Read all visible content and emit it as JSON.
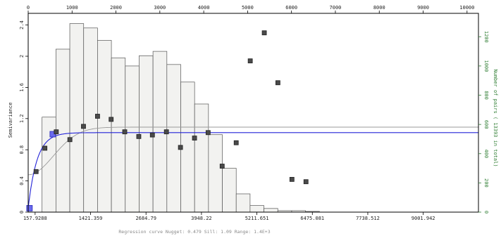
{
  "chart_data": {
    "type": "bar",
    "combo": [
      "histogram-bar",
      "scatter",
      "line"
    ],
    "xlim": [
      0,
      10260
    ],
    "x_top_ticks": [
      0,
      1000,
      2000,
      3000,
      4000,
      5000,
      6000,
      7000,
      8000,
      9000,
      10000
    ],
    "x_bottom_ticks": [
      {
        "value": 157.9288,
        "label": "157.9288"
      },
      {
        "value": 1421.359,
        "label": "1421.359"
      },
      {
        "value": 2684.79,
        "label": "2684.79"
      },
      {
        "value": 3948.22,
        "label": "3948.22"
      },
      {
        "value": 5211.651,
        "label": "5211.651"
      },
      {
        "value": 6475.081,
        "label": "6475.081"
      },
      {
        "value": 7738.512,
        "label": "7738.512"
      },
      {
        "value": 9001.942,
        "label": "9001.942"
      }
    ],
    "ylabel": "Semivariance",
    "ylim": [
      0,
      2.55
    ],
    "y_ticks": [
      "0",
      "0.4",
      "0.8",
      "1.2",
      "1.6",
      "2",
      "2.4"
    ],
    "y2label": "Number of pairs   ( 13393 in total)",
    "y2lim": [
      0,
      1360
    ],
    "y2_ticks": [
      "0",
      "200",
      "400",
      "600",
      "800",
      "1000",
      "1200"
    ],
    "grid": false,
    "histogram": {
      "bin_edges": [
        0,
        316,
        632,
        948,
        1264,
        1580,
        1896,
        2212,
        2528,
        2844,
        3160,
        3476,
        3792,
        4108,
        4424,
        4740,
        5056,
        5372,
        5688,
        6004,
        6320,
        6636
      ],
      "counts": [
        0,
        650,
        1115,
        1290,
        1260,
        1175,
        1055,
        1000,
        1070,
        1100,
        1010,
        890,
        740,
        530,
        300,
        125,
        45,
        25,
        10,
        10,
        5
      ]
    },
    "semivariance_points": {
      "x": [
        30,
        180,
        380,
        560,
        640,
        950,
        1260,
        1580,
        1890,
        2200,
        2520,
        2830,
        3150,
        3470,
        3790,
        4100,
        4420,
        4740,
        5060,
        5380,
        5690,
        6010,
        6330
      ],
      "y": [
        0.05,
        0.52,
        0.82,
        1.0,
        1.03,
        0.93,
        1.1,
        1.23,
        1.19,
        1.03,
        0.97,
        0.99,
        1.03,
        0.83,
        0.95,
        1.02,
        0.59,
        0.89,
        1.94,
        2.3,
        1.66,
        0.42,
        0.39
      ],
      "highlighted": [
        true,
        false,
        false,
        true,
        false,
        false,
        false,
        false,
        false,
        false,
        false,
        false,
        false,
        false,
        false,
        false,
        false,
        false,
        false,
        false,
        false,
        false,
        false
      ]
    },
    "regression_model": {
      "nugget": 0.479,
      "sill": 1.09,
      "range": 1400
    },
    "regression_curve_line": {
      "start": 0.05,
      "plateau": 1.02,
      "rise_scale": 200
    },
    "regression_caption": "Regression curve   Nugget: 0.479   Sill: 1.09   Range: 1.4E+3",
    "colors": {
      "bar_fill": "#f2f2f0",
      "bar_stroke": "#555555",
      "point": "#4a4a4a",
      "point_highlight": "#6a6aee",
      "curve_main": "#2323d8",
      "curve_gray": "#9a9a9a",
      "frame": "#000000",
      "right_axis": "#2e7d32"
    }
  }
}
